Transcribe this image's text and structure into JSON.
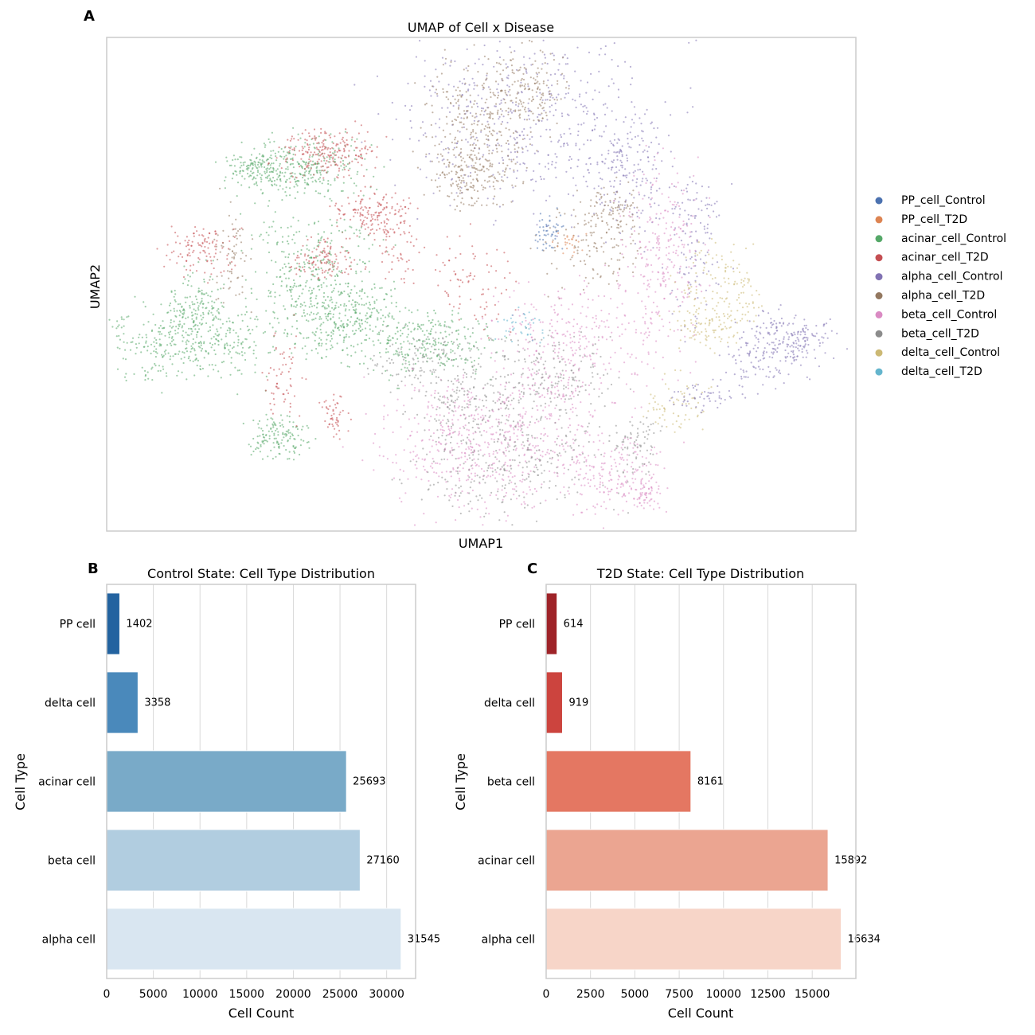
{
  "panels": {
    "a": {
      "letter": "A",
      "title": "UMAP of Cell x Disease",
      "xlabel": "UMAP1",
      "ylabel": "UMAP2"
    },
    "b": {
      "letter": "B",
      "title": "Control State: Cell Type Distribution",
      "xlabel": "Cell Count",
      "ylabel": "Cell Type"
    },
    "c": {
      "letter": "C",
      "title": "T2D State: Cell Type Distribution",
      "xlabel": "Cell Count",
      "ylabel": "Cell Type"
    }
  },
  "umap_legend": [
    {
      "label": "PP_cell_Control",
      "color": "#4c72b0"
    },
    {
      "label": "PP_cell_T2D",
      "color": "#dd8452"
    },
    {
      "label": "acinar_cell_Control",
      "color": "#55a868"
    },
    {
      "label": "acinar_cell_T2D",
      "color": "#c44e52"
    },
    {
      "label": "alpha_cell_Control",
      "color": "#8172b3"
    },
    {
      "label": "alpha_cell_T2D",
      "color": "#937860"
    },
    {
      "label": "beta_cell_Control",
      "color": "#da8bc3"
    },
    {
      "label": "beta_cell_T2D",
      "color": "#8c8c8c"
    },
    {
      "label": "delta_cell_Control",
      "color": "#ccb974"
    },
    {
      "label": "delta_cell_T2D",
      "color": "#64b5cd"
    }
  ],
  "chart_data": [
    {
      "type": "scatter",
      "title": "UMAP of Cell x Disease",
      "xlabel": "UMAP1",
      "ylabel": "UMAP2",
      "series": [
        {
          "name": "PP_cell_Control"
        },
        {
          "name": "PP_cell_T2D"
        },
        {
          "name": "acinar_cell_Control"
        },
        {
          "name": "acinar_cell_T2D"
        },
        {
          "name": "alpha_cell_Control"
        },
        {
          "name": "alpha_cell_T2D"
        },
        {
          "name": "beta_cell_Control"
        },
        {
          "name": "beta_cell_T2D"
        },
        {
          "name": "delta_cell_Control"
        },
        {
          "name": "delta_cell_T2D"
        }
      ],
      "legend": "right",
      "grid": false
    },
    {
      "type": "bar",
      "orientation": "horizontal",
      "title": "Control State: Cell Type Distribution",
      "xlabel": "Cell Count",
      "ylabel": "Cell Type",
      "categories": [
        "PP cell",
        "delta cell",
        "acinar cell",
        "beta cell",
        "alpha cell"
      ],
      "values": [
        1402,
        3358,
        25693,
        27160,
        31545
      ],
      "value_labels": [
        "1402",
        "3358",
        "25693",
        "27160",
        "31545"
      ],
      "colors": [
        "#2363a0",
        "#4a89bb",
        "#79aac8",
        "#b1cde0",
        "#d9e6f1"
      ],
      "xlim": [
        0,
        33100
      ],
      "xticks": [
        0,
        5000,
        10000,
        15000,
        20000,
        25000,
        30000
      ],
      "xtick_labels": [
        "0",
        "5000",
        "10000",
        "15000",
        "20000",
        "25000",
        "30000"
      ],
      "grid": true
    },
    {
      "type": "bar",
      "orientation": "horizontal",
      "title": "T2D State: Cell Type Distribution",
      "xlabel": "Cell Count",
      "ylabel": "Cell Type",
      "categories": [
        "PP cell",
        "delta cell",
        "beta cell",
        "acinar cell",
        "alpha cell"
      ],
      "values": [
        614,
        919,
        8161,
        15892,
        16634
      ],
      "value_labels": [
        "614",
        "919",
        "8161",
        "15892",
        "16634"
      ],
      "colors": [
        "#9e2328",
        "#cc443e",
        "#e47762",
        "#eba591",
        "#f7d5c8"
      ],
      "xlim": [
        0,
        17460
      ],
      "xticks": [
        0,
        2500,
        5000,
        7500,
        10000,
        12500,
        15000
      ],
      "xtick_labels": [
        "0",
        "2500",
        "5000",
        "7500",
        "10000",
        "12500",
        "15000"
      ],
      "grid": true
    }
  ]
}
